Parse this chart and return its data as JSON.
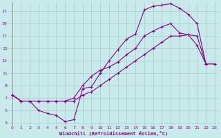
{
  "bg_color": "#c8eaea",
  "grid_color": "#aad0d0",
  "line_color": "#880088",
  "xlabel": "Windchill (Refroidissement éolien,°C)",
  "xlim": [
    -0.5,
    23.5
  ],
  "ylim": [
    2.5,
    22.5
  ],
  "xticks": [
    0,
    1,
    2,
    3,
    4,
    5,
    6,
    7,
    8,
    9,
    10,
    11,
    12,
    13,
    14,
    15,
    16,
    17,
    18,
    19,
    20,
    21,
    22,
    23
  ],
  "yticks": [
    3,
    5,
    7,
    9,
    11,
    13,
    15,
    17,
    19,
    21
  ],
  "line1_x": [
    0,
    1,
    2,
    3,
    4,
    5,
    6,
    7,
    8,
    9,
    10,
    11,
    12,
    13,
    14,
    15,
    16,
    17,
    18,
    19,
    20,
    21,
    22,
    23
  ],
  "line1_y": [
    7.5,
    6.5,
    6.5,
    5.0,
    4.5,
    4.2,
    3.2,
    3.5,
    8.5,
    8.8,
    11.0,
    13.0,
    14.8,
    16.5,
    17.3,
    21.2,
    21.8,
    22.0,
    22.2,
    21.5,
    20.5,
    19.0,
    12.5,
    12.5
  ],
  "line2_x": [
    0,
    1,
    2,
    3,
    4,
    5,
    6,
    7,
    8,
    9,
    10,
    11,
    12,
    13,
    14,
    15,
    16,
    17,
    18,
    19,
    20,
    21,
    22,
    23
  ],
  "line2_y": [
    7.5,
    6.5,
    6.5,
    6.5,
    6.5,
    6.5,
    6.5,
    7.0,
    9.0,
    10.5,
    11.5,
    12.0,
    12.8,
    14.0,
    15.0,
    17.0,
    17.8,
    18.5,
    19.0,
    17.5,
    17.2,
    15.5,
    12.5,
    12.5
  ],
  "line3_x": [
    0,
    1,
    2,
    3,
    4,
    5,
    6,
    7,
    8,
    9,
    10,
    11,
    12,
    13,
    14,
    15,
    16,
    17,
    18,
    19,
    20,
    21,
    22,
    23
  ],
  "line3_y": [
    7.5,
    6.5,
    6.5,
    6.5,
    6.5,
    6.5,
    6.5,
    6.5,
    7.5,
    8.0,
    9.0,
    10.0,
    11.0,
    12.0,
    13.0,
    14.0,
    15.0,
    16.0,
    17.0,
    17.0,
    17.2,
    17.0,
    12.5,
    12.5
  ]
}
